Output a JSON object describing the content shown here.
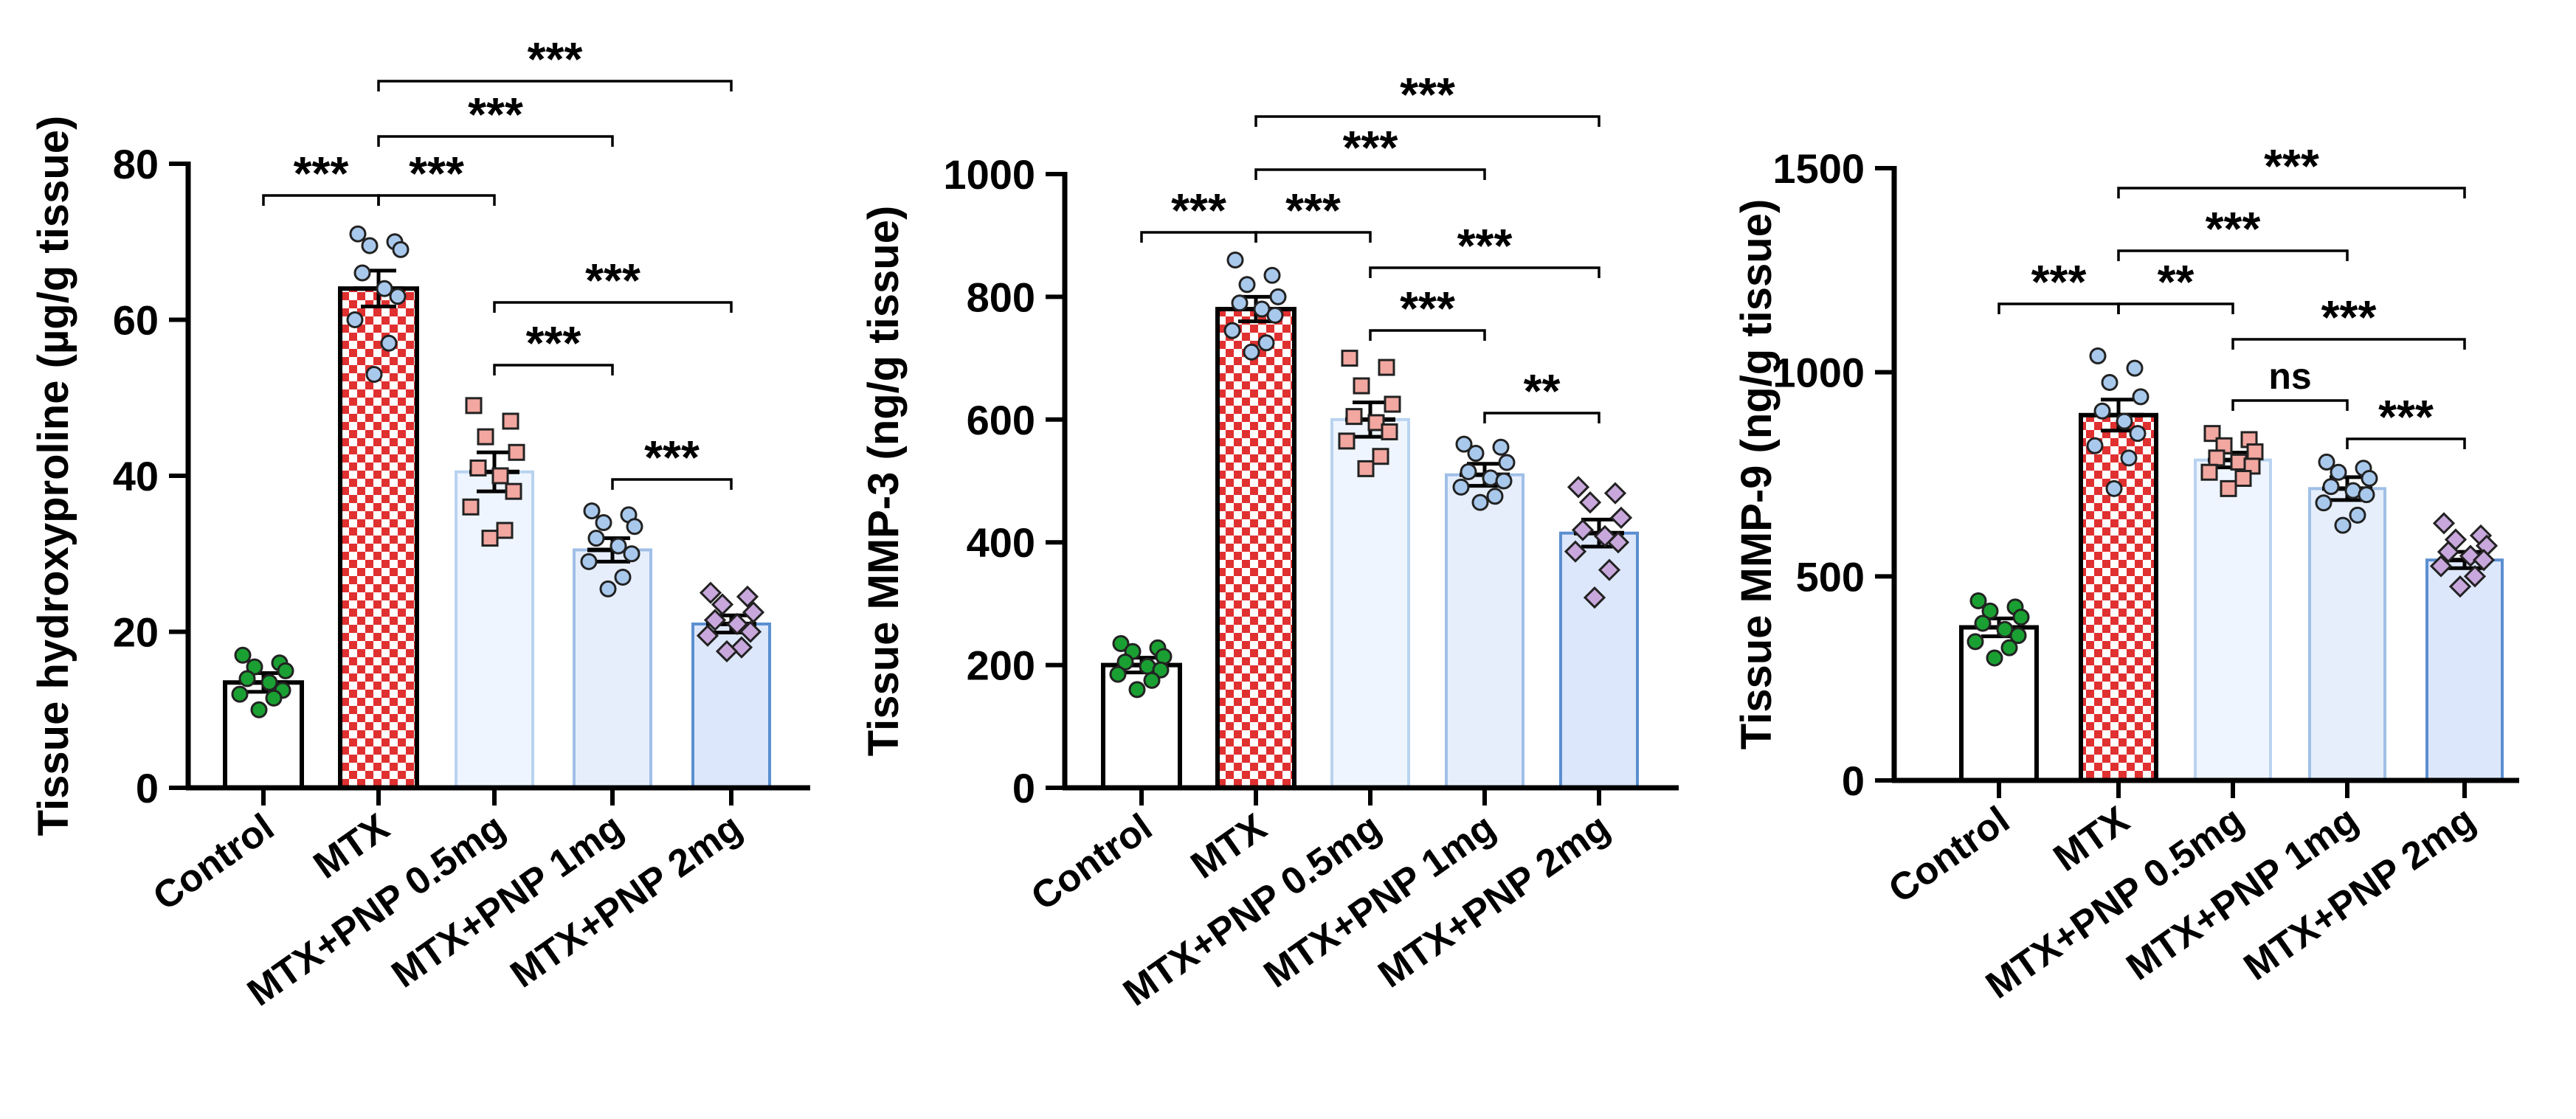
{
  "colors": {
    "control_fill": "#ffffff",
    "checker_red": "#e03030",
    "checker_white": "#ffffff",
    "pnp_low_fill": "#eef5ff",
    "pnp_mid_fill": "#e6eefc",
    "pnp_high_fill": "#dde7fb",
    "pnp_low_stroke": "#b9d3f0",
    "pnp_mid_stroke": "#9fbfe6",
    "pnp_high_stroke": "#5b8fd0",
    "dot_control": "#1aa032",
    "dot_mtx": "#a9c9ec",
    "dot_low": "#f2a7a0",
    "dot_mid": "#a9c9ec",
    "dot_high": "#c8a8dc"
  },
  "chart_data": [
    {
      "type": "bar",
      "title": "",
      "xlabel": "",
      "ylabel": "Tissue hydroxyproline (µg/g tissue)",
      "ylim": [
        0,
        80
      ],
      "yticks": [
        0,
        20,
        40,
        60,
        80
      ],
      "categories": [
        "Control",
        "MTX",
        "MTX+PNP 0.5mg",
        "MTX+PNP 1mg",
        "MTX+PNP 2mg"
      ],
      "values": [
        13.5,
        64,
        40.5,
        30.5,
        21
      ],
      "errors": [
        1.2,
        2.3,
        2.5,
        1.5,
        1.1
      ],
      "points": [
        [
          17,
          16,
          15.5,
          15,
          14,
          13.5,
          12.5,
          12,
          11.5,
          10
        ],
        [
          71,
          70,
          69.5,
          69,
          66,
          64,
          63,
          60,
          57,
          53
        ],
        [
          49,
          47,
          45,
          43,
          41,
          40,
          38,
          36,
          33,
          32
        ],
        [
          35.5,
          35,
          34,
          33.5,
          32,
          31,
          30,
          29,
          27,
          25.5
        ],
        [
          25,
          24.5,
          23.5,
          22.5,
          21.5,
          21,
          20,
          19.5,
          18,
          17.5
        ]
      ],
      "significance": [
        {
          "from": 0,
          "to": 1,
          "label": "***"
        },
        {
          "from": 1,
          "to": 2,
          "label": "***"
        },
        {
          "from": 1,
          "to": 3,
          "label": "***"
        },
        {
          "from": 1,
          "to": 4,
          "label": "***"
        },
        {
          "from": 2,
          "to": 4,
          "label": "***"
        },
        {
          "from": 2,
          "to": 3,
          "label": "***"
        },
        {
          "from": 3,
          "to": 4,
          "label": "***"
        }
      ]
    },
    {
      "type": "bar",
      "title": "",
      "xlabel": "",
      "ylabel": "Tissue MMP-3 (ng/g tissue)",
      "ylim": [
        0,
        1000
      ],
      "yticks": [
        0,
        200,
        400,
        600,
        800,
        1000
      ],
      "categories": [
        "Control",
        "MTX",
        "MTX+PNP 0.5mg",
        "MTX+PNP 1mg",
        "MTX+PNP 2mg"
      ],
      "values": [
        200,
        780,
        600,
        510,
        415
      ],
      "errors": [
        12,
        20,
        28,
        18,
        22
      ],
      "points": [
        [
          235,
          228,
          222,
          214,
          205,
          198,
          192,
          185,
          175,
          160
        ],
        [
          860,
          835,
          820,
          800,
          790,
          780,
          770,
          745,
          725,
          710
        ],
        [
          700,
          685,
          655,
          625,
          605,
          595,
          580,
          565,
          540,
          520
        ],
        [
          560,
          555,
          545,
          530,
          515,
          505,
          500,
          490,
          475,
          465
        ],
        [
          490,
          480,
          465,
          440,
          420,
          410,
          400,
          385,
          355,
          310
        ]
      ],
      "significance": [
        {
          "from": 0,
          "to": 1,
          "label": "***"
        },
        {
          "from": 1,
          "to": 2,
          "label": "***"
        },
        {
          "from": 1,
          "to": 3,
          "label": "***"
        },
        {
          "from": 1,
          "to": 4,
          "label": "***"
        },
        {
          "from": 2,
          "to": 4,
          "label": "***"
        },
        {
          "from": 2,
          "to": 3,
          "label": "***"
        },
        {
          "from": 3,
          "to": 4,
          "label": "**"
        }
      ]
    },
    {
      "type": "bar",
      "title": "",
      "xlabel": "",
      "ylabel": "Tissue MMP-9 (ng/g tissue)",
      "ylim": [
        0,
        1500
      ],
      "yticks": [
        0,
        500,
        1000,
        1500
      ],
      "categories": [
        "Control",
        "MTX",
        "MTX+PNP 0.5mg",
        "MTX+PNP 1mg",
        "MTX+PNP 2mg"
      ],
      "values": [
        375,
        895,
        785,
        715,
        540
      ],
      "errors": [
        22,
        38,
        18,
        28,
        20
      ],
      "points": [
        [
          440,
          425,
          415,
          400,
          385,
          370,
          355,
          340,
          325,
          300
        ],
        [
          1040,
          1010,
          975,
          940,
          905,
          880,
          850,
          820,
          790,
          715
        ],
        [
          850,
          835,
          820,
          805,
          790,
          780,
          770,
          755,
          740,
          715
        ],
        [
          780,
          765,
          755,
          740,
          720,
          710,
          700,
          680,
          650,
          625
        ],
        [
          630,
          600,
          590,
          575,
          560,
          550,
          540,
          525,
          500,
          475
        ]
      ],
      "significance": [
        {
          "from": 0,
          "to": 1,
          "label": "***"
        },
        {
          "from": 1,
          "to": 2,
          "label": "**"
        },
        {
          "from": 1,
          "to": 3,
          "label": "***"
        },
        {
          "from": 1,
          "to": 4,
          "label": "***"
        },
        {
          "from": 2,
          "to": 4,
          "label": "***"
        },
        {
          "from": 2,
          "to": 3,
          "label": "ns"
        },
        {
          "from": 3,
          "to": 4,
          "label": "***"
        }
      ]
    }
  ]
}
